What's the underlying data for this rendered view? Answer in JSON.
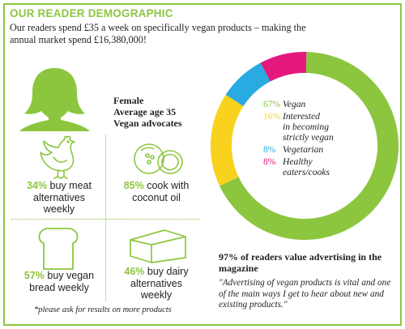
{
  "header": {
    "title": "OUR READER DEMOGRAPHIC",
    "intro": "Our readers spend £35 a week on specifically vegan products – making the annual market spend £16,380,000!"
  },
  "profile": {
    "line1": "Female",
    "line2": "Average age 35",
    "line3": "Vegan advocates"
  },
  "stats": [
    {
      "pct": "34%",
      "text_a": " buy meat",
      "text_b": "alternatives",
      "text_c": "weekly",
      "icon": "chicken-icon"
    },
    {
      "pct": "85%",
      "text_a": " cook with",
      "text_b": "coconut oil",
      "text_c": "",
      "icon": "coconut-icon"
    },
    {
      "pct": "57%",
      "text_a": " buy vegan",
      "text_b": "bread weekly",
      "text_c": "",
      "icon": "bread-icon"
    },
    {
      "pct": "46%",
      "text_a": " buy dairy",
      "text_b": "alternatives",
      "text_c": "weekly",
      "icon": "cheese-icon"
    }
  ],
  "footnote": "*please ask for results on more products",
  "chart_data": {
    "type": "pie",
    "categories": [
      "Vegan",
      "Interested in becoming strictly vegan",
      "Vegetarian",
      "Healthy eaters/cooks"
    ],
    "values": [
      67,
      16,
      8,
      8
    ],
    "labels": [
      {
        "pct": "67%",
        "lines": [
          "Vegan"
        ],
        "color": "#8cc63f"
      },
      {
        "pct": "16%",
        "lines": [
          "Interested",
          "in becoming",
          "strictly vegan"
        ],
        "color": "#f9d21d"
      },
      {
        "pct": "8%",
        "lines": [
          "Vegetarian"
        ],
        "color": "#29abe2"
      },
      {
        "pct": "8%",
        "lines": [
          "Healthy",
          "eaters/cooks"
        ],
        "color": "#e5197d"
      }
    ]
  },
  "advertising": {
    "title": "97% of readers value advertising in the magazine",
    "quote": "\"Advertising of vegan products is vital and one of the main ways I get to hear about new and existing products.\""
  },
  "colors": {
    "accent": "#8cc63f",
    "yellow": "#f9d21d",
    "blue": "#29abe2",
    "pink": "#e5197d"
  }
}
